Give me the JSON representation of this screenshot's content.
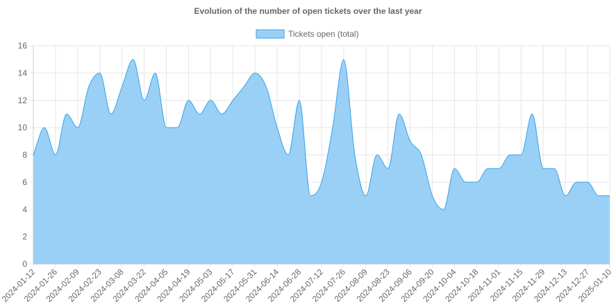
{
  "chart_data": {
    "type": "area",
    "title": "Evolution of the number of open tickets over the last year",
    "xlabel": "",
    "ylabel": "",
    "ylim": [
      0,
      16
    ],
    "yticks": [
      0,
      2,
      4,
      6,
      8,
      10,
      12,
      14,
      16
    ],
    "grid": true,
    "legend_position": "top",
    "x_tick_labels": [
      "2024-01-12",
      "2024-01-26",
      "2024-02-09",
      "2024-02-23",
      "2024-03-08",
      "2024-03-22",
      "2024-04-05",
      "2024-04-19",
      "2024-05-03",
      "2024-05-17",
      "2024-05-31",
      "2024-06-14",
      "2024-06-28",
      "2024-07-12",
      "2024-07-26",
      "2024-08-09",
      "2024-08-23",
      "2024-09-06",
      "2024-09-20",
      "2024-10-04",
      "2024-10-18",
      "2024-11-01",
      "2024-11-15",
      "2024-11-29",
      "2024-12-13",
      "2024-12-27",
      "2025-01-10"
    ],
    "x": [
      "2024-01-12",
      "2024-01-19",
      "2024-01-26",
      "2024-02-02",
      "2024-02-09",
      "2024-02-16",
      "2024-02-23",
      "2024-03-01",
      "2024-03-08",
      "2024-03-15",
      "2024-03-22",
      "2024-03-29",
      "2024-04-05",
      "2024-04-12",
      "2024-04-19",
      "2024-04-26",
      "2024-05-03",
      "2024-05-10",
      "2024-05-17",
      "2024-05-24",
      "2024-05-31",
      "2024-06-07",
      "2024-06-14",
      "2024-06-21",
      "2024-06-28",
      "2024-07-05",
      "2024-07-12",
      "2024-07-19",
      "2024-07-26",
      "2024-08-02",
      "2024-08-09",
      "2024-08-16",
      "2024-08-23",
      "2024-08-30",
      "2024-09-06",
      "2024-09-13",
      "2024-09-20",
      "2024-09-27",
      "2024-10-04",
      "2024-10-11",
      "2024-10-18",
      "2024-10-25",
      "2024-11-01",
      "2024-11-08",
      "2024-11-15",
      "2024-11-22",
      "2024-11-29",
      "2024-12-06",
      "2024-12-13",
      "2024-12-20",
      "2024-12-27",
      "2025-01-03",
      "2025-01-10"
    ],
    "series": [
      {
        "name": "Tickets open (total)",
        "color": "#36a2eb",
        "fill": "#9ad0f5",
        "values": [
          8,
          10,
          8,
          11,
          10,
          13,
          14,
          11,
          13,
          15,
          12,
          14,
          10,
          10,
          12,
          11,
          12,
          11,
          12,
          13,
          14,
          13,
          10,
          8,
          12,
          5,
          6,
          10,
          15,
          8,
          5,
          8,
          7,
          11,
          9,
          8,
          5,
          4,
          7,
          6,
          6,
          7,
          7,
          8,
          8,
          11,
          7,
          7,
          5,
          6,
          6,
          5,
          5
        ]
      }
    ]
  }
}
